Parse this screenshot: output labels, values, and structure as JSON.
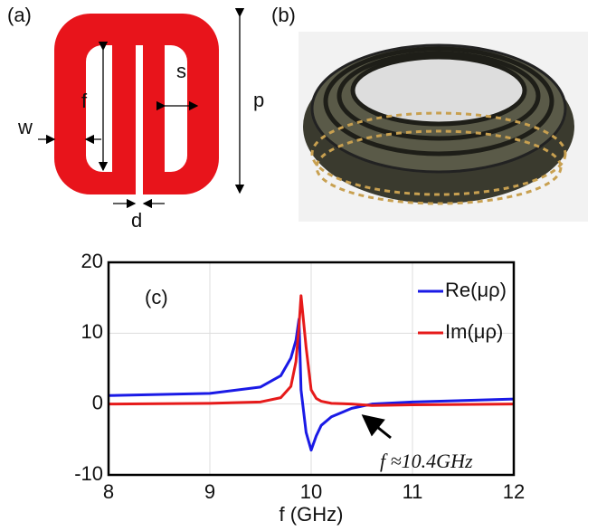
{
  "panel_a": {
    "label": "(a)",
    "dimensions": [
      "f",
      "s",
      "w",
      "p",
      "d"
    ]
  },
  "panel_b": {
    "label": "(b)"
  },
  "chart_data": {
    "type": "line",
    "label": "(c)",
    "x_label": "f (GHz)",
    "x": [
      8,
      9,
      9.5,
      9.7,
      9.8,
      9.85,
      9.88,
      9.9,
      9.95,
      10,
      10.05,
      10.1,
      10.2,
      10.4,
      10.6,
      11,
      12
    ],
    "series": [
      {
        "name": "Re(μρ)",
        "color": "#1a1ae6",
        "values": [
          1.2,
          1.5,
          2.4,
          4,
          6.5,
          9,
          12,
          2,
          -4,
          -6.5,
          -4.5,
          -3,
          -1.8,
          -0.6,
          0,
          0.3,
          0.7
        ]
      },
      {
        "name": "Im(μρ)",
        "color": "#e61a1a",
        "values": [
          0,
          0.1,
          0.3,
          0.9,
          2.5,
          6,
          11,
          15.3,
          8,
          2,
          0.8,
          0.4,
          0.1,
          0,
          -0.2,
          -0.1,
          0
        ]
      }
    ],
    "xlim": [
      8,
      12
    ],
    "xticks": [
      8,
      9,
      10,
      11,
      12
    ],
    "ylim": [
      -10,
      20
    ],
    "yticks": [
      -10,
      0,
      10,
      20
    ],
    "grid": true,
    "annotation": "f ≈10.4GHz"
  }
}
